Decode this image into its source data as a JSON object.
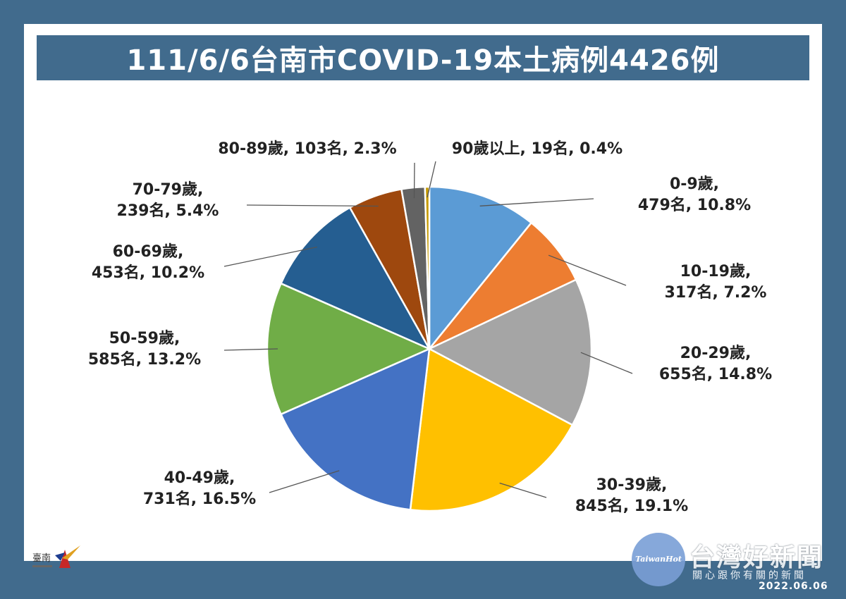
{
  "chart_data": {
    "type": "pie",
    "title": "111/6/6台南市COVID-19本土病例4426例",
    "total": 4426,
    "slices": [
      {
        "category": "0-9歲",
        "count": 479,
        "percent": 10.8,
        "line1": "0-9歲,",
        "line2": "479名, 10.8%",
        "color": "#5b9bd5"
      },
      {
        "category": "10-19歲",
        "count": 317,
        "percent": 7.2,
        "line1": "10-19歲,",
        "line2": "317名, 7.2%",
        "color": "#ed7d31"
      },
      {
        "category": "20-29歲",
        "count": 655,
        "percent": 14.8,
        "line1": "20-29歲,",
        "line2": "655名, 14.8%",
        "color": "#a5a5a5"
      },
      {
        "category": "30-39歲",
        "count": 845,
        "percent": 19.1,
        "line1": "30-39歲,",
        "line2": "845名, 19.1%",
        "color": "#ffc000"
      },
      {
        "category": "40-49歲",
        "count": 731,
        "percent": 16.5,
        "line1": "40-49歲,",
        "line2": "731名, 16.5%",
        "color": "#4472c4"
      },
      {
        "category": "50-59歲",
        "count": 585,
        "percent": 13.2,
        "line1": "50-59歲,",
        "line2": "585名, 13.2%",
        "color": "#70ad47"
      },
      {
        "category": "60-69歲",
        "count": 453,
        "percent": 10.2,
        "line1": "60-69歲,",
        "line2": "453名, 10.2%",
        "color": "#255e91"
      },
      {
        "category": "70-79歲",
        "count": 239,
        "percent": 5.4,
        "line1": "70-79歲,",
        "line2": "239名, 5.4%",
        "color": "#9e480e"
      },
      {
        "category": "80-89歲",
        "count": 103,
        "percent": 2.3,
        "line1": "80-89歲, 103名, 2.3%",
        "line2": "",
        "color": "#636363"
      },
      {
        "category": "90歲以上",
        "count": 19,
        "percent": 0.4,
        "line1": "90歲以上, 19名, 0.4%",
        "line2": "",
        "color": "#c69a00"
      }
    ]
  },
  "logo": {
    "text": "臺南"
  },
  "watermark": {
    "circle_text": "TaiwanHot",
    "big_text": "台灣好新聞",
    "small_text": "關心跟你有關的新聞",
    "date": "2022.06.06"
  }
}
